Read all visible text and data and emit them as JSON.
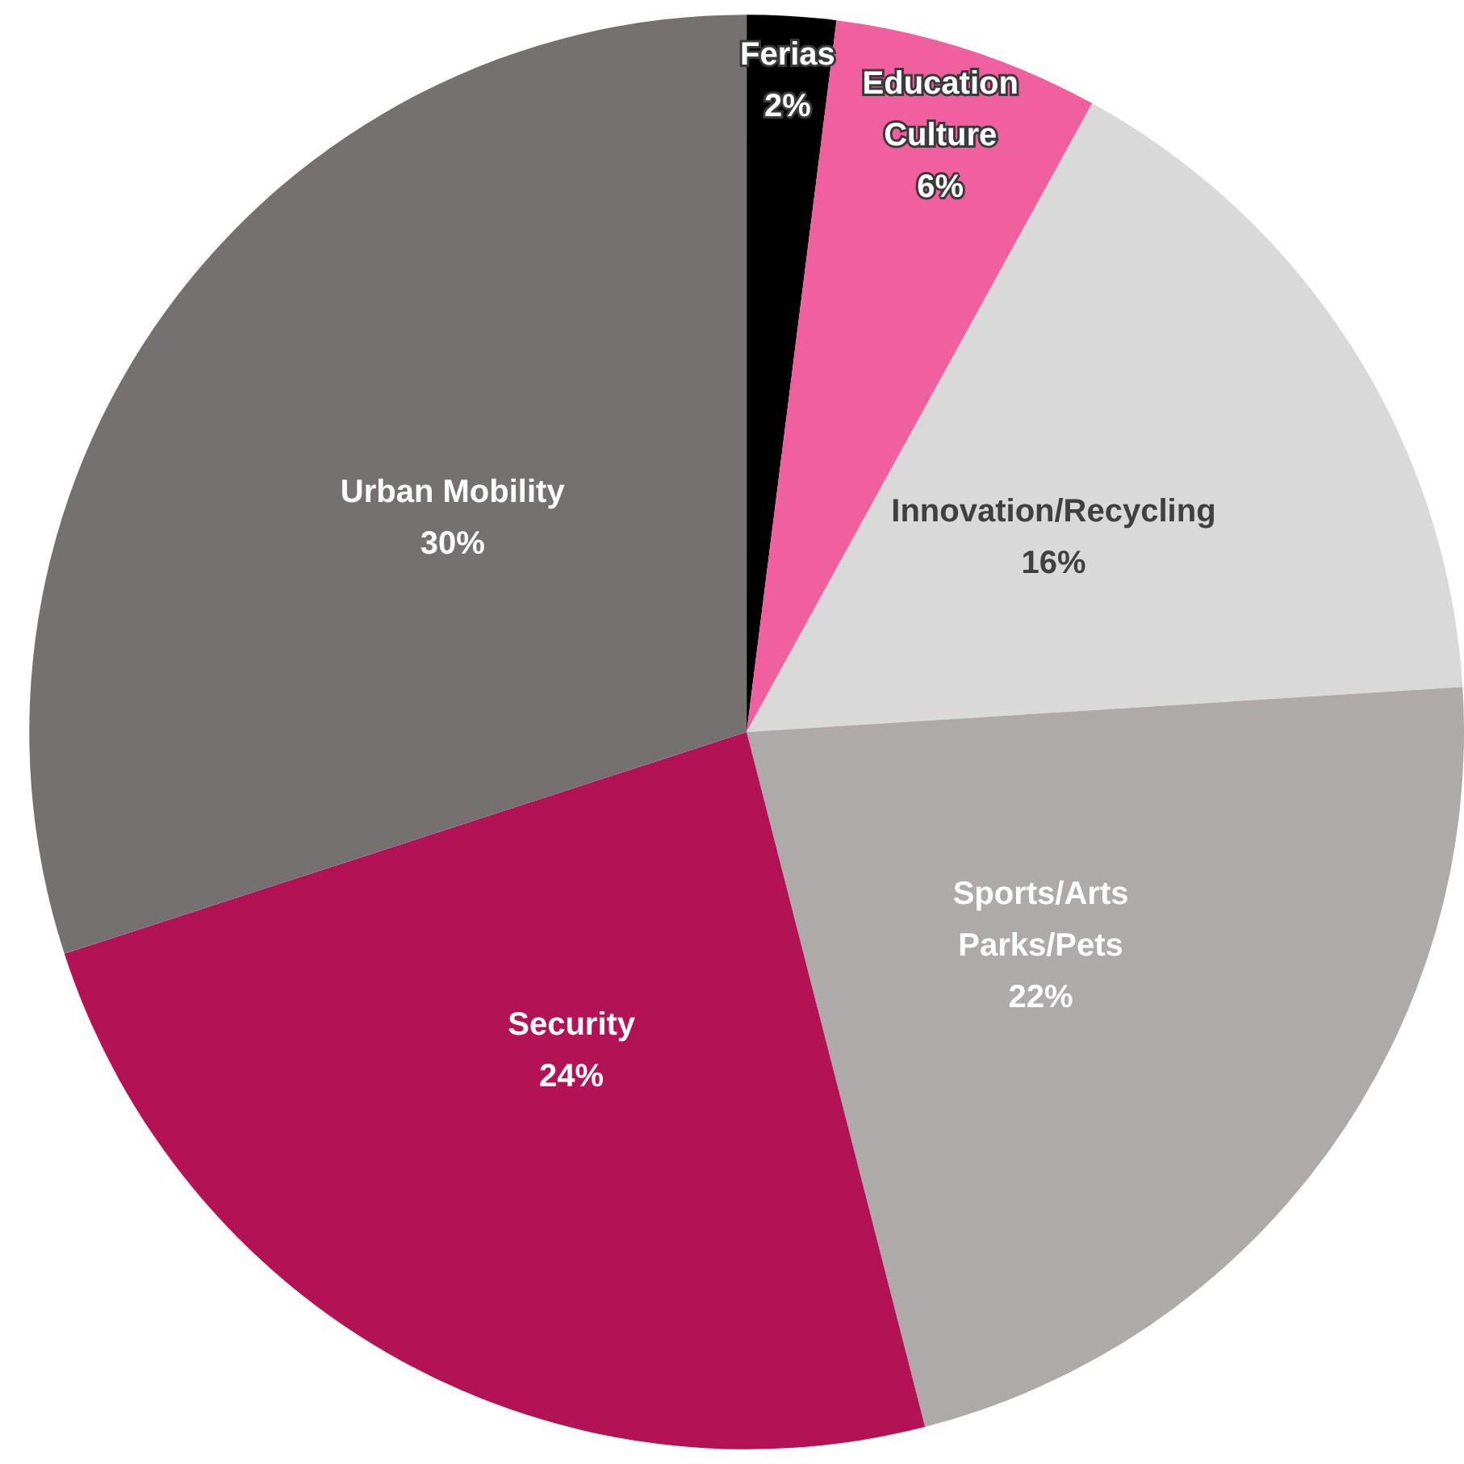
{
  "chart_data": {
    "type": "pie",
    "categories": [
      "Ferias",
      "Education\nCulture",
      "Innovation/Recycling",
      "Sports/Arts\nParks/Pets",
      "Security",
      "Urban Mobility"
    ],
    "values": [
      2,
      6,
      16,
      22,
      24,
      30
    ],
    "value_labels": [
      "2%",
      "6%",
      "16%",
      "22%",
      "24%",
      "30%"
    ],
    "colors": [
      "#000000",
      "#f0609e",
      "#d9d9d9",
      "#aeaaaa",
      "#b31255",
      "#767171"
    ],
    "legend": false
  }
}
